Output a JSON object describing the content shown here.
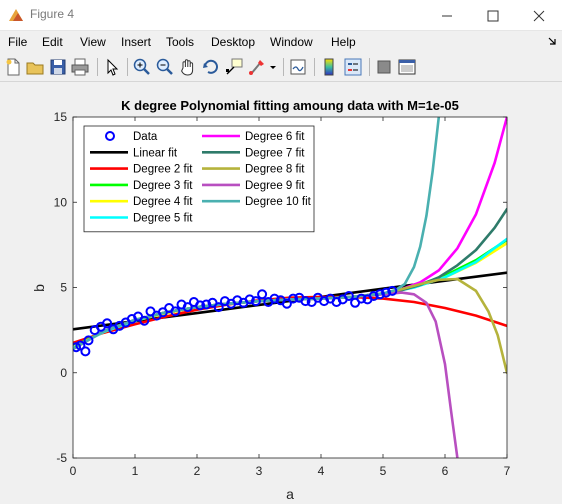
{
  "window": {
    "title": "Figure 4",
    "icon": "matlab-figure-icon",
    "controls": [
      "minimize-icon",
      "maximize-icon",
      "close-icon"
    ]
  },
  "menu": {
    "items": [
      "File",
      "Edit",
      "View",
      "Insert",
      "Tools",
      "Desktop",
      "Window",
      "Help"
    ],
    "dock_arrow": "dock-arrow-icon"
  },
  "toolbar": {
    "buttons": [
      "new-figure-icon",
      "open-file-icon",
      "save-icon",
      "print-icon",
      "edit-plot-arrow-icon",
      "zoom-in-icon",
      "zoom-out-icon",
      "pan-hand-icon",
      "rotate-3d-icon",
      "data-cursor-icon",
      "brush-icon",
      "brush-dropdown-icon",
      "link-plot-icon",
      "colorbar-icon",
      "legend-icon",
      "hide-plot-tools-icon",
      "show-plot-tools-icon"
    ]
  },
  "chart_data": {
    "type": "line",
    "title": "K degree Polynomial fitting amoung data with M=1e-05",
    "xlabel": "a",
    "ylabel": "b",
    "xlim": [
      0,
      7
    ],
    "ylim": [
      -5,
      15
    ],
    "xticks": [
      0,
      1,
      2,
      3,
      4,
      5,
      6,
      7
    ],
    "yticks": [
      -5,
      0,
      5,
      10,
      15
    ],
    "grid": false,
    "legend": {
      "placement": "top-left",
      "columns": 2
    },
    "scatter": {
      "name": "Data",
      "color": "#0000ff",
      "x": [
        0.05,
        0.12,
        0.2,
        0.25,
        0.35,
        0.45,
        0.55,
        0.65,
        0.75,
        0.85,
        0.95,
        1.05,
        1.15,
        1.25,
        1.35,
        1.45,
        1.55,
        1.65,
        1.75,
        1.85,
        1.95,
        2.05,
        2.15,
        2.25,
        2.35,
        2.45,
        2.55,
        2.65,
        2.75,
        2.85,
        2.95,
        3.05,
        3.15,
        3.25,
        3.35,
        3.45,
        3.55,
        3.65,
        3.75,
        3.85,
        3.95,
        4.05,
        4.15,
        4.25,
        4.35,
        4.45,
        4.55,
        4.65,
        4.75,
        4.85,
        4.95,
        5.05,
        5.15
      ],
      "y": [
        1.5,
        1.6,
        1.25,
        1.9,
        2.5,
        2.7,
        2.9,
        2.55,
        2.75,
        2.95,
        3.15,
        3.3,
        3.05,
        3.6,
        3.35,
        3.55,
        3.8,
        3.6,
        4.0,
        3.85,
        4.15,
        3.95,
        4.0,
        4.1,
        3.85,
        4.2,
        4.05,
        4.25,
        4.1,
        4.3,
        4.2,
        4.6,
        4.15,
        4.35,
        4.25,
        4.05,
        4.35,
        4.4,
        4.2,
        4.15,
        4.4,
        4.2,
        4.35,
        4.15,
        4.3,
        4.5,
        4.1,
        4.35,
        4.3,
        4.5,
        4.6,
        4.7,
        4.8
      ]
    },
    "series": [
      {
        "name": "Linear fit",
        "color": "#000000",
        "x": [
          0,
          1,
          2,
          3,
          4,
          5,
          6,
          7
        ],
        "y": [
          2.55,
          3.03,
          3.5,
          3.98,
          4.45,
          4.93,
          5.4,
          5.87
        ]
      },
      {
        "name": "Degree 2 fit",
        "color": "#ff0000",
        "x": [
          0,
          0.5,
          1,
          1.5,
          2,
          2.5,
          3,
          3.5,
          4,
          4.5,
          5,
          5.5,
          6,
          6.5,
          7
        ],
        "y": [
          1.75,
          2.35,
          2.85,
          3.3,
          3.7,
          4.0,
          4.25,
          4.4,
          4.45,
          4.45,
          4.35,
          4.15,
          3.8,
          3.35,
          2.75
        ]
      },
      {
        "name": "Degree 3 fit",
        "color": "#00ff00",
        "x": [
          0,
          0.5,
          1,
          1.5,
          2,
          2.5,
          3,
          3.5,
          4,
          4.5,
          5,
          5.5,
          6,
          6.5,
          7
        ],
        "y": [
          1.55,
          2.4,
          3.05,
          3.5,
          3.85,
          4.05,
          4.2,
          4.3,
          4.35,
          4.45,
          4.65,
          5.05,
          5.7,
          6.6,
          7.8
        ]
      },
      {
        "name": "Degree 4 fit",
        "color": "#ffff00",
        "x": [
          0,
          0.5,
          1,
          1.5,
          2,
          2.5,
          3,
          3.5,
          4,
          4.5,
          5,
          5.5,
          6,
          6.5,
          7
        ],
        "y": [
          1.5,
          2.4,
          3.05,
          3.5,
          3.85,
          4.05,
          4.2,
          4.3,
          4.35,
          4.45,
          4.65,
          5.02,
          5.6,
          6.45,
          7.6
        ]
      },
      {
        "name": "Degree 5 fit",
        "color": "#00ffff",
        "x": [
          0,
          0.5,
          1,
          1.5,
          2,
          2.5,
          3,
          3.5,
          4,
          4.5,
          5,
          5.5,
          6,
          6.5,
          7
        ],
        "y": [
          1.45,
          2.4,
          3.05,
          3.55,
          3.85,
          4.05,
          4.2,
          4.3,
          4.35,
          4.45,
          4.62,
          5.0,
          5.6,
          6.5,
          7.85
        ]
      },
      {
        "name": "Degree 6 fit",
        "color": "#ff00ff",
        "x": [
          0,
          0.5,
          1,
          1.5,
          2,
          2.5,
          3,
          3.5,
          4,
          4.5,
          5,
          5.3,
          5.6,
          5.9,
          6.2,
          6.5,
          6.8,
          7
        ],
        "y": [
          1.4,
          2.45,
          3.1,
          3.55,
          3.85,
          4.05,
          4.2,
          4.3,
          4.35,
          4.45,
          4.65,
          4.9,
          5.3,
          6.0,
          7.3,
          9.3,
          12.3,
          15.0
        ]
      },
      {
        "name": "Degree 7 fit",
        "color": "#2e7b6a",
        "x": [
          0,
          0.5,
          1,
          1.5,
          2,
          2.5,
          3,
          3.5,
          4,
          4.5,
          5,
          5.3,
          5.6,
          5.9,
          6.2,
          6.5,
          6.8,
          7
        ],
        "y": [
          1.4,
          2.45,
          3.1,
          3.55,
          3.85,
          4.05,
          4.2,
          4.3,
          4.35,
          4.45,
          4.65,
          4.85,
          5.15,
          5.6,
          6.3,
          7.2,
          8.5,
          9.6
        ]
      },
      {
        "name": "Degree 8 fit",
        "color": "#b5b33c",
        "x": [
          0,
          0.5,
          1,
          1.5,
          2,
          2.5,
          3,
          3.5,
          4,
          4.5,
          5,
          5.3,
          5.6,
          5.9,
          6.2,
          6.5,
          6.7,
          6.85,
          7
        ],
        "y": [
          1.4,
          2.45,
          3.1,
          3.55,
          3.85,
          4.05,
          4.2,
          4.3,
          4.35,
          4.45,
          4.65,
          4.9,
          5.2,
          5.45,
          5.5,
          4.8,
          3.6,
          2.2,
          0.0
        ]
      },
      {
        "name": "Degree 9 fit",
        "color": "#b84fc0",
        "x": [
          0,
          0.5,
          1,
          1.5,
          2,
          2.5,
          3,
          3.5,
          4,
          4.5,
          5,
          5.3,
          5.5,
          5.7,
          5.85,
          6.0,
          6.1,
          6.2
        ],
        "y": [
          1.4,
          2.45,
          3.1,
          3.55,
          3.85,
          4.05,
          4.2,
          4.3,
          4.35,
          4.45,
          4.6,
          4.7,
          4.6,
          4.1,
          3.0,
          0.5,
          -2.3,
          -5.0
        ]
      },
      {
        "name": "Degree 10 fit",
        "color": "#4ab0b0",
        "x": [
          0,
          0.5,
          1,
          1.5,
          2,
          2.5,
          3,
          3.5,
          4,
          4.5,
          5,
          5.2,
          5.35,
          5.5,
          5.6,
          5.7,
          5.8,
          5.9
        ],
        "y": [
          1.4,
          2.45,
          3.1,
          3.55,
          3.85,
          4.05,
          4.2,
          4.3,
          4.35,
          4.45,
          4.65,
          4.85,
          5.2,
          6.2,
          7.4,
          9.2,
          11.8,
          15.0
        ]
      }
    ]
  }
}
